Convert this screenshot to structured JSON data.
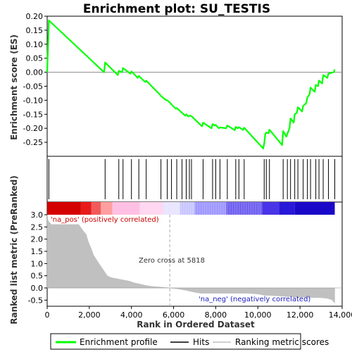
{
  "chart_data": [
    {
      "panel": "enrichment",
      "type": "line",
      "title": "Enrichment plot: SU_TESTIS",
      "ylabel": "Enrichment score (ES)",
      "ylim": [
        -0.3,
        0.2
      ],
      "yticks": [
        0.2,
        0.15,
        0.1,
        0.05,
        0.0,
        -0.05,
        -0.1,
        -0.15,
        -0.2,
        -0.25
      ],
      "ytick_labels": [
        "0.20",
        "0.15",
        "0.10",
        "0.05",
        "0.00",
        "-0.05",
        "-0.10",
        "-0.15",
        "-0.20",
        "-0.25"
      ],
      "color": "#00ff00",
      "series": [
        {
          "x": [
            0,
            80,
            2700,
            2750,
            3350,
            3400,
            3550,
            3600,
            3950,
            4000,
            4300,
            4350,
            4650,
            4700,
            5350,
            5400,
            5650,
            5700,
            5850,
            5900,
            6100,
            6150,
            6550,
            6600,
            6700,
            6750,
            6800,
            6850,
            7350,
            7400,
            7800,
            7850,
            7950,
            8000,
            8150,
            8200,
            8500,
            8550,
            8900,
            8950,
            9050,
            9100,
            9300,
            9350,
            10250,
            10300,
            10350,
            10400,
            10500,
            10550,
            11150,
            11200,
            11350,
            11400,
            11500,
            11550,
            11700,
            11750,
            11850,
            11900,
            12100,
            12150,
            12300,
            12350,
            12450,
            12500,
            12700,
            12750,
            12850,
            12900,
            13050,
            13100,
            13300,
            13350,
            13600,
            13650
          ],
          "y": [
            0.0,
            0.185,
            0.0,
            0.035,
            -0.01,
            0.005,
            0.0,
            0.015,
            -0.005,
            0.003,
            -0.02,
            -0.013,
            -0.035,
            -0.03,
            -0.08,
            -0.085,
            -0.1,
            -0.1,
            -0.11,
            -0.115,
            -0.13,
            -0.128,
            -0.155,
            -0.15,
            -0.158,
            -0.155,
            -0.155,
            -0.157,
            -0.193,
            -0.18,
            -0.2,
            -0.185,
            -0.19,
            -0.188,
            -0.2,
            -0.197,
            -0.2,
            -0.19,
            -0.207,
            -0.195,
            -0.2,
            -0.196,
            -0.206,
            -0.198,
            -0.272,
            -0.255,
            -0.22,
            -0.215,
            -0.218,
            -0.205,
            -0.26,
            -0.21,
            -0.23,
            -0.22,
            -0.2,
            -0.165,
            -0.18,
            -0.15,
            -0.145,
            -0.125,
            -0.14,
            -0.12,
            -0.11,
            -0.09,
            -0.08,
            -0.055,
            -0.07,
            -0.045,
            -0.05,
            -0.03,
            -0.04,
            -0.01,
            -0.02,
            -0.005,
            0.0,
            0.01
          ]
        }
      ]
    },
    {
      "panel": "hits",
      "type": "scatter",
      "hit_positions": [
        80,
        2750,
        3400,
        3600,
        4000,
        4350,
        4700,
        5400,
        5700,
        5900,
        6150,
        6400,
        6600,
        6750,
        6850,
        7400,
        7850,
        8000,
        8200,
        8550,
        8950,
        9100,
        9350,
        10300,
        10400,
        10550,
        11200,
        11400,
        11550,
        11750,
        11900,
        12150,
        12350,
        12500,
        12750,
        12900,
        13100,
        13350,
        13650
      ]
    },
    {
      "panel": "ranked_metric",
      "type": "area",
      "xlabel": "Rank in Ordered Dataset",
      "ylabel": "Ranked list metric (PreRanked)",
      "xlim": [
        0,
        14000
      ],
      "xticks": [
        0,
        2000,
        4000,
        6000,
        8000,
        10000,
        12000,
        14000
      ],
      "xtick_labels": [
        "0",
        "2,000",
        "4,000",
        "6,000",
        "8,000",
        "10,000",
        "12,000",
        "14,000"
      ],
      "ylim": [
        -0.75,
        3.0
      ],
      "yticks": [
        3.0,
        2.5,
        2.0,
        1.5,
        1.0,
        0.5,
        0.0,
        -0.5
      ],
      "ytick_labels": [
        "3.0",
        "2.5",
        "2.0",
        "1.5",
        "1.0",
        "0.5",
        "0.0",
        "-0.5"
      ],
      "color": "#c0c0c0",
      "x": [
        0,
        50,
        200,
        1500,
        1700,
        1850,
        1950,
        2100,
        2200,
        2350,
        2500,
        2700,
        2850,
        3050,
        3300,
        3600,
        3900,
        4100,
        4300,
        4500,
        4700,
        5000,
        5500,
        5818,
        6200,
        6600,
        7000,
        7300,
        9500,
        10000,
        10300,
        11000,
        11500,
        12000,
        13000,
        13300,
        13500,
        13650
      ],
      "values": [
        3.0,
        2.75,
        2.6,
        2.6,
        2.35,
        2.2,
        1.9,
        1.6,
        1.35,
        1.15,
        0.95,
        0.7,
        0.5,
        0.42,
        0.38,
        0.33,
        0.28,
        0.22,
        0.18,
        0.14,
        0.1,
        0.06,
        0.03,
        0.0,
        -0.04,
        -0.1,
        -0.18,
        -0.22,
        -0.22,
        -0.25,
        -0.3,
        -0.33,
        -0.36,
        -0.38,
        -0.4,
        -0.43,
        -0.48,
        -0.62
      ],
      "zero_cross_rank": 5818,
      "annotations": {
        "positive": "'na_pos' (positively correlated)",
        "negative": "'na_neg' (negatively correlated)",
        "zero_cross": "Zero cross at 5818"
      },
      "heat_colors": [
        "#d40000",
        "#e81b1b",
        "#f25a5a",
        "#ff9f9f",
        "#ffc0e4",
        "#ffd7f0",
        "#e8e4ff",
        "#c8c6ff",
        "#9f98ff",
        "#7060f0",
        "#4a34e8",
        "#2818d8",
        "#1a08c8"
      ]
    }
  ],
  "legend": {
    "items": [
      {
        "label": "Enrichment profile",
        "color": "#00ff00"
      },
      {
        "label": "Hits",
        "color": "#000000"
      },
      {
        "label": "Ranking metric scores",
        "color": "#c0c0c0"
      }
    ]
  }
}
